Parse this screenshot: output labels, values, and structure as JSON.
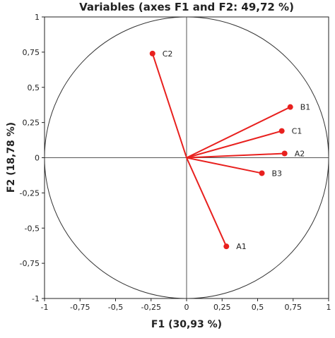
{
  "chart_data": {
    "type": "scatter",
    "title": "Variables (axes F1 and F2: 49,72 %)",
    "xlabel": "F1 (30,93 %)",
    "ylabel": "F2 (18,78 %)",
    "xlim": [
      -1,
      1
    ],
    "ylim": [
      -1,
      1
    ],
    "x_ticks": [
      "-1",
      "-0,75",
      "-0,5",
      "-0,25",
      "0",
      "0,25",
      "0,5",
      "0,75",
      "1"
    ],
    "y_ticks": [
      "-1",
      "-0,75",
      "-0,5",
      "-0,25",
      "0",
      "0,25",
      "0,5",
      "0,75",
      "1"
    ],
    "grid": false,
    "correlation_circle": true,
    "vector_color": "#e8201e",
    "points": [
      {
        "label": "C2",
        "x": -0.24,
        "y": 0.74
      },
      {
        "label": "B1",
        "x": 0.73,
        "y": 0.36
      },
      {
        "label": "C1",
        "x": 0.67,
        "y": 0.19
      },
      {
        "label": "A2",
        "x": 0.69,
        "y": 0.03
      },
      {
        "label": "B3",
        "x": 0.53,
        "y": -0.11
      },
      {
        "label": "A1",
        "x": 0.28,
        "y": -0.63
      }
    ]
  }
}
